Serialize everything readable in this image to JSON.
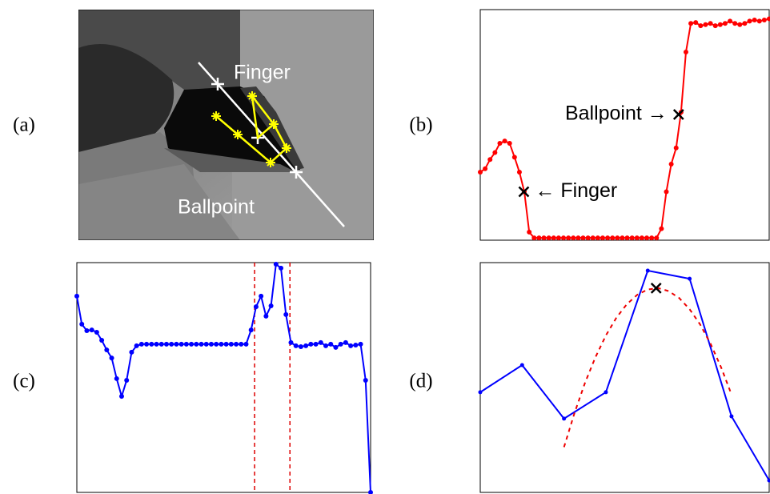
{
  "panel_labels": [
    "(a)",
    "(b)",
    "(c)",
    "(d)"
  ],
  "image_labels": [
    "Finger",
    "Ballpoint"
  ],
  "chart_data": [
    {
      "type": "line",
      "xlim": [
        0,
        59
      ],
      "ylim": [
        0,
        100
      ],
      "series": [
        {
          "color": "#ff0000",
          "markers": true,
          "values": [
            29.5,
            31,
            35,
            38,
            42,
            43,
            42,
            36,
            29.5,
            21,
            3.5,
            1,
            1,
            1,
            1,
            1,
            1,
            1,
            1,
            1,
            1,
            1,
            1,
            1,
            1,
            1,
            1,
            1,
            1,
            1,
            1,
            1,
            1,
            1,
            1,
            1,
            1,
            5,
            21,
            33,
            40,
            55.5,
            81.6,
            94,
            94.4,
            93,
            93.5,
            94,
            93,
            93.5,
            94,
            95,
            94,
            93.5,
            94,
            95,
            95.5,
            95,
            95.5,
            96
          ]
        }
      ],
      "annotations": [
        {
          "text": "← Finger",
          "x": 8.9,
          "y": 21,
          "side": "right"
        },
        {
          "text": "Ballpoint →",
          "x": 40.5,
          "y": 54.5,
          "side": "left"
        }
      ]
    },
    {
      "type": "line",
      "xlim": [
        0,
        59
      ],
      "ylim": [
        0,
        100
      ],
      "series": [
        {
          "color": "#0000ff",
          "markers": true,
          "values": [
            85.4,
            73.2,
            70.4,
            70.7,
            69.7,
            66.2,
            62,
            58.5,
            49.5,
            41.8,
            48.8,
            61,
            63.8,
            64.5,
            64.5,
            64.5,
            64.5,
            64.5,
            64.5,
            64.5,
            64.5,
            64.5,
            64.5,
            64.5,
            64.5,
            64.5,
            64.5,
            64.5,
            64.5,
            64.5,
            64.5,
            64.5,
            64.5,
            64.5,
            64.5,
            70.7,
            80.8,
            85.4,
            76.7,
            81.2,
            99.3,
            97.6,
            77.4,
            65.2,
            63.8,
            63.4,
            63.8,
            64.5,
            64.5,
            65.2,
            63.8,
            64.5,
            63.1,
            64.5,
            65.2,
            63.8,
            64.1,
            64.5,
            48.8,
            0
          ]
        }
      ],
      "vlines": [
        35.7,
        42.8
      ],
      "vline_color": "#dd0000"
    },
    {
      "type": "line",
      "xlim": [
        0,
        6.9
      ],
      "ylim": [
        0,
        100
      ],
      "series": [
        {
          "color": "#0000ff",
          "markers": false,
          "x": [
            0,
            1,
            2,
            3,
            4,
            5,
            6,
            6.9
          ],
          "values": [
            43.6,
            55.4,
            32.1,
            43.6,
            96.5,
            93.0,
            33.1,
            5.2
          ]
        },
        {
          "color": "#ee0000",
          "dashed": true,
          "markers": false,
          "x": [
            2.0,
            2.25,
            2.5,
            2.75,
            3.0,
            3.25,
            3.5,
            3.75,
            4.0,
            4.25,
            4.5,
            4.75,
            5.0,
            5.25,
            5.5,
            5.75,
            6.0
          ],
          "values": [
            19.7,
            34.5,
            47.6,
            58.8,
            68.3,
            76.0,
            81.9,
            86.0,
            88.3,
            88.9,
            87.6,
            84.6,
            79.7,
            73.1,
            64.7,
            54.5,
            42.6
          ]
        }
      ],
      "crosses": [
        {
          "x": 4.2,
          "y": 88.9
        }
      ]
    }
  ]
}
